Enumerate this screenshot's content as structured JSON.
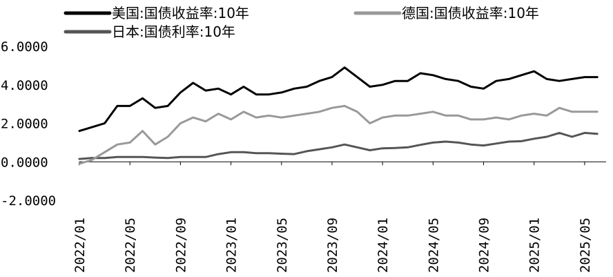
{
  "chart_data": {
    "type": "line",
    "title": "",
    "xlabel": "",
    "ylabel": "",
    "ylim": [
      -2,
      6
    ],
    "y_ticks": [
      "6.0000",
      "4.0000",
      "2.0000",
      "0.0000",
      "-2.0000"
    ],
    "y_tick_values": [
      6,
      4,
      2,
      0,
      -2
    ],
    "x_range": [
      "2022-01",
      "2025-06"
    ],
    "x_ticks": [
      "2022/01",
      "2022/05",
      "2022/09",
      "2023/01",
      "2023/05",
      "2023/09",
      "2024/01",
      "2024/05",
      "2024/09",
      "2025/01",
      "2025/05"
    ],
    "grid": false,
    "legend_placement": "top",
    "series": [
      {
        "name": "美国:国债收益率:10年",
        "color": "#000000",
        "x": [
          "2022-01",
          "2022-02",
          "2022-03",
          "2022-04",
          "2022-05",
          "2022-06",
          "2022-07",
          "2022-08",
          "2022-09",
          "2022-10",
          "2022-11",
          "2022-12",
          "2023-01",
          "2023-02",
          "2023-03",
          "2023-04",
          "2023-05",
          "2023-06",
          "2023-07",
          "2023-08",
          "2023-09",
          "2023-10",
          "2023-11",
          "2023-12",
          "2024-01",
          "2024-02",
          "2024-03",
          "2024-04",
          "2024-05",
          "2024-06",
          "2024-07",
          "2024-08",
          "2024-09",
          "2024-10",
          "2024-11",
          "2024-12",
          "2025-01",
          "2025-02",
          "2025-03",
          "2025-04",
          "2025-05",
          "2025-06"
        ],
        "values": [
          1.6,
          1.8,
          2.0,
          2.9,
          2.9,
          3.3,
          2.8,
          2.9,
          3.6,
          4.1,
          3.7,
          3.8,
          3.5,
          3.9,
          3.5,
          3.5,
          3.6,
          3.8,
          3.9,
          4.2,
          4.4,
          4.9,
          4.4,
          3.9,
          4.0,
          4.2,
          4.2,
          4.6,
          4.5,
          4.3,
          4.2,
          3.9,
          3.8,
          4.2,
          4.3,
          4.5,
          4.7,
          4.3,
          4.2,
          4.3,
          4.4,
          4.4
        ]
      },
      {
        "name": "德国:国债收益率:10年",
        "color": "#999999",
        "x": [
          "2022-01",
          "2022-02",
          "2022-03",
          "2022-04",
          "2022-05",
          "2022-06",
          "2022-07",
          "2022-08",
          "2022-09",
          "2022-10",
          "2022-11",
          "2022-12",
          "2023-01",
          "2023-02",
          "2023-03",
          "2023-04",
          "2023-05",
          "2023-06",
          "2023-07",
          "2023-08",
          "2023-09",
          "2023-10",
          "2023-11",
          "2023-12",
          "2024-01",
          "2024-02",
          "2024-03",
          "2024-04",
          "2024-05",
          "2024-06",
          "2024-07",
          "2024-08",
          "2024-09",
          "2024-10",
          "2024-11",
          "2024-12",
          "2025-01",
          "2025-02",
          "2025-03",
          "2025-04",
          "2025-05",
          "2025-06"
        ],
        "values": [
          -0.1,
          0.1,
          0.5,
          0.9,
          1.0,
          1.6,
          0.9,
          1.3,
          2.0,
          2.3,
          2.1,
          2.5,
          2.2,
          2.6,
          2.3,
          2.4,
          2.3,
          2.4,
          2.5,
          2.6,
          2.8,
          2.9,
          2.6,
          2.0,
          2.3,
          2.4,
          2.4,
          2.5,
          2.6,
          2.4,
          2.4,
          2.2,
          2.2,
          2.3,
          2.2,
          2.4,
          2.5,
          2.4,
          2.8,
          2.6,
          2.6,
          2.6
        ]
      },
      {
        "name": "日本:国债利率:10年",
        "color": "#555555",
        "x": [
          "2022-01",
          "2022-02",
          "2022-03",
          "2022-04",
          "2022-05",
          "2022-06",
          "2022-07",
          "2022-08",
          "2022-09",
          "2022-10",
          "2022-11",
          "2022-12",
          "2023-01",
          "2023-02",
          "2023-03",
          "2023-04",
          "2023-05",
          "2023-06",
          "2023-07",
          "2023-08",
          "2023-09",
          "2023-10",
          "2023-11",
          "2023-12",
          "2024-01",
          "2024-02",
          "2024-03",
          "2024-04",
          "2024-05",
          "2024-06",
          "2024-07",
          "2024-08",
          "2024-09",
          "2024-10",
          "2024-11",
          "2024-12",
          "2025-01",
          "2025-02",
          "2025-03",
          "2025-04",
          "2025-05",
          "2025-06"
        ],
        "values": [
          0.15,
          0.2,
          0.2,
          0.25,
          0.25,
          0.25,
          0.22,
          0.2,
          0.25,
          0.25,
          0.25,
          0.4,
          0.5,
          0.5,
          0.45,
          0.45,
          0.42,
          0.4,
          0.55,
          0.65,
          0.75,
          0.9,
          0.75,
          0.6,
          0.7,
          0.72,
          0.75,
          0.88,
          1.0,
          1.05,
          1.0,
          0.9,
          0.85,
          0.95,
          1.05,
          1.07,
          1.2,
          1.3,
          1.5,
          1.3,
          1.5,
          1.45
        ]
      }
    ]
  }
}
